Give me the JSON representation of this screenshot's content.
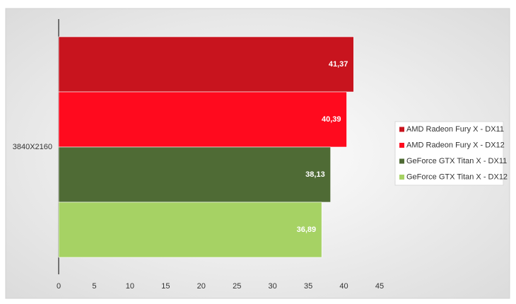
{
  "chart_data": {
    "type": "bar",
    "orientation": "horizontal",
    "categories": [
      "3840X2160"
    ],
    "series": [
      {
        "name": "AMD Radeon Fury X - DX11",
        "color": "#c8141e",
        "values": [
          41.37
        ],
        "value_labels": [
          "41,37"
        ]
      },
      {
        "name": "AMD Radeon Fury X - DX12",
        "color": "#ff0a1e",
        "values": [
          40.39
        ],
        "value_labels": [
          "40,39"
        ]
      },
      {
        "name": "GeForce GTX Titan X - DX11",
        "color": "#4f6b35",
        "values": [
          38.13
        ],
        "value_labels": [
          "38,13"
        ]
      },
      {
        "name": "GeForce GTX Titan X - DX12",
        "color": "#a6d264",
        "values": [
          36.89
        ],
        "value_labels": [
          "36,89"
        ]
      }
    ],
    "xlim": [
      0,
      45
    ],
    "xticks": [
      0,
      5,
      10,
      15,
      20,
      25,
      30,
      35,
      40,
      45
    ],
    "legend": "right"
  }
}
